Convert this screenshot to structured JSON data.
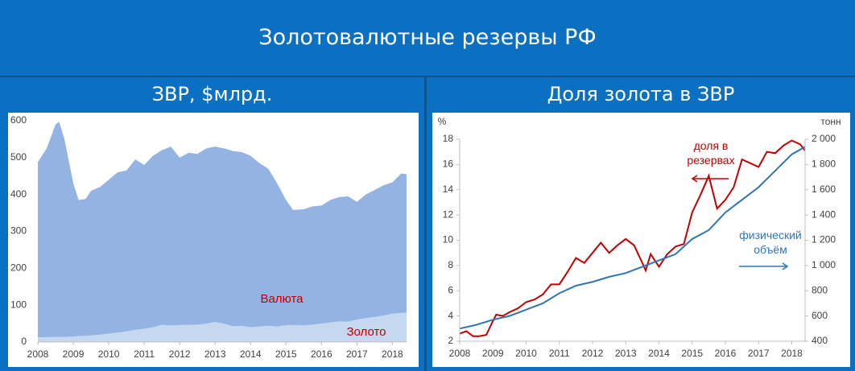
{
  "title": "Золотовалютные резервы РФ",
  "chart_data": [
    {
      "type": "area",
      "title": "ЗВР, $млрд.",
      "stacked": true,
      "grid": false,
      "x": [
        2008.0,
        2008.25,
        2008.5,
        2008.6,
        2008.75,
        2009.0,
        2009.15,
        2009.35,
        2009.5,
        2009.75,
        2010.0,
        2010.25,
        2010.5,
        2010.75,
        2011.0,
        2011.25,
        2011.5,
        2011.75,
        2012.0,
        2012.25,
        2012.5,
        2012.75,
        2013.0,
        2013.25,
        2013.5,
        2013.75,
        2014.0,
        2014.25,
        2014.5,
        2014.75,
        2015.0,
        2015.2,
        2015.5,
        2015.75,
        2016.0,
        2016.25,
        2016.5,
        2016.75,
        2017.0,
        2017.25,
        2017.5,
        2017.75,
        2018.0,
        2018.25,
        2018.4
      ],
      "series": [
        {
          "name": "Золото",
          "color": "#c6d7f0",
          "label_color": "#c00000",
          "values": [
            13,
            13,
            14,
            14,
            14,
            15,
            16,
            17,
            18,
            20,
            23,
            26,
            29,
            33,
            36,
            40,
            47,
            45,
            46,
            47,
            47,
            50,
            54,
            50,
            43,
            44,
            40,
            42,
            44,
            42,
            46,
            46,
            45,
            47,
            50,
            53,
            56,
            55,
            61,
            65,
            68,
            72,
            77,
            79,
            80
          ]
        },
        {
          "name": "Валюта",
          "color": "#93b3e2",
          "label_color": "#c00000",
          "values": [
            475,
            512,
            576,
            583,
            536,
            415,
            369,
            371,
            392,
            400,
            417,
            434,
            436,
            462,
            444,
            465,
            473,
            485,
            454,
            466,
            463,
            475,
            476,
            475,
            475,
            471,
            465,
            443,
            426,
            388,
            339,
            312,
            315,
            321,
            320,
            332,
            337,
            340,
            319,
            335,
            344,
            353,
            356,
            378,
            375
          ]
        }
      ],
      "xlim": [
        2008,
        2018.4
      ],
      "xticks": [
        2008,
        2009,
        2010,
        2011,
        2012,
        2013,
        2014,
        2015,
        2016,
        2017,
        2018
      ],
      "ylim": [
        0,
        600
      ],
      "yticks": [
        0,
        100,
        200,
        300,
        400,
        500,
        600
      ]
    },
    {
      "type": "line",
      "title": "Доля золота в ЗВР",
      "grid": false,
      "ylabel": "%",
      "y2label": "тонн",
      "series": [
        {
          "name": "доля в резервах",
          "color": "#c00000",
          "x": [
            2008.0,
            2008.2,
            2008.4,
            2008.6,
            2008.8,
            2009.0,
            2009.1,
            2009.3,
            2009.5,
            2009.75,
            2010.0,
            2010.25,
            2010.5,
            2010.75,
            2011.0,
            2011.25,
            2011.5,
            2011.75,
            2012.0,
            2012.25,
            2012.5,
            2012.75,
            2013.0,
            2013.25,
            2013.5,
            2013.6,
            2013.75,
            2014.0,
            2014.25,
            2014.5,
            2014.75,
            2015.0,
            2015.25,
            2015.5,
            2015.75,
            2016.0,
            2016.25,
            2016.5,
            2016.75,
            2017.0,
            2017.25,
            2017.5,
            2017.75,
            2018.0,
            2018.25,
            2018.4
          ],
          "values": [
            2.6,
            2.8,
            2.4,
            2.4,
            2.5,
            3.6,
            4.1,
            4.0,
            4.3,
            4.6,
            5.1,
            5.3,
            5.7,
            6.5,
            6.5,
            7.5,
            8.6,
            8.2,
            9.0,
            9.8,
            9.0,
            9.6,
            10.1,
            9.6,
            8.2,
            7.6,
            8.9,
            7.9,
            8.9,
            9.5,
            9.7,
            12.2,
            13.6,
            15.1,
            12.5,
            13.2,
            14.2,
            16.4,
            16.1,
            15.8,
            17.0,
            16.9,
            17.5,
            17.9,
            17.6,
            17.1
          ]
        },
        {
          "name": "физический объём",
          "color": "#2e75b6",
          "axis": "y2",
          "x": [
            2008.0,
            2008.5,
            2009.0,
            2009.5,
            2010.0,
            2010.5,
            2011.0,
            2011.5,
            2012.0,
            2012.5,
            2013.0,
            2013.5,
            2014.0,
            2014.5,
            2015.0,
            2015.5,
            2016.0,
            2016.5,
            2017.0,
            2017.5,
            2018.0,
            2018.4
          ],
          "values": [
            500,
            530,
            570,
            600,
            650,
            700,
            780,
            840,
            870,
            910,
            940,
            990,
            1040,
            1090,
            1210,
            1280,
            1420,
            1520,
            1620,
            1750,
            1880,
            1940
          ]
        }
      ],
      "xlim": [
        2008,
        2018.4
      ],
      "xticks": [
        2008,
        2009,
        2010,
        2011,
        2012,
        2013,
        2014,
        2015,
        2016,
        2017,
        2018
      ],
      "ylim": [
        2,
        18
      ],
      "yticks": [
        2,
        4,
        6,
        8,
        10,
        12,
        14,
        16,
        18
      ],
      "y2lim": [
        400,
        2000
      ],
      "y2ticks": [
        400,
        600,
        800,
        {
          "value": 1000,
          "label": "1 000"
        },
        {
          "value": 1200,
          "label": "1 200"
        },
        {
          "value": 1400,
          "label": "1 400"
        },
        {
          "value": 1600,
          "label": "1 600"
        },
        {
          "value": 1800,
          "label": "1 800"
        },
        {
          "value": 2000,
          "label": "2 000"
        }
      ]
    }
  ]
}
